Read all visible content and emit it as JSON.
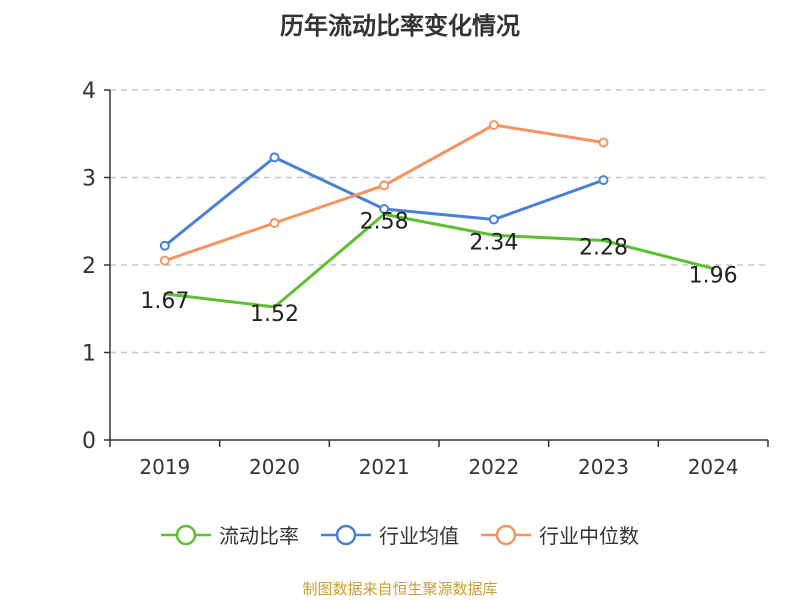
{
  "title": "历年流动比率变化情况",
  "source_text": "制图数据来自恒生聚源数据库",
  "chart_data": {
    "type": "line",
    "title": "历年流动比率变化情况",
    "categories": [
      "2019",
      "2020",
      "2021",
      "2022",
      "2023",
      "2024"
    ],
    "y_ticks": [
      "0",
      "1",
      "2",
      "3",
      "4"
    ],
    "ylim": [
      0,
      4
    ],
    "grid": true,
    "legend_position": "bottom",
    "series": [
      {
        "name": "流动比率",
        "color": "#5cc031",
        "values": [
          1.67,
          1.52,
          2.58,
          2.34,
          2.28,
          1.96
        ],
        "labels": [
          "1.67",
          "1.52",
          "2.58",
          "2.34",
          "2.28",
          "1.96"
        ],
        "markers": false
      },
      {
        "name": "行业均值",
        "color": "#4a7fd6",
        "values": [
          2.22,
          3.23,
          2.64,
          2.52,
          2.97,
          null
        ],
        "markers": true
      },
      {
        "name": "行业中位数",
        "color": "#f59460",
        "values": [
          2.05,
          2.48,
          2.91,
          3.6,
          3.4,
          null
        ],
        "markers": true
      }
    ]
  }
}
